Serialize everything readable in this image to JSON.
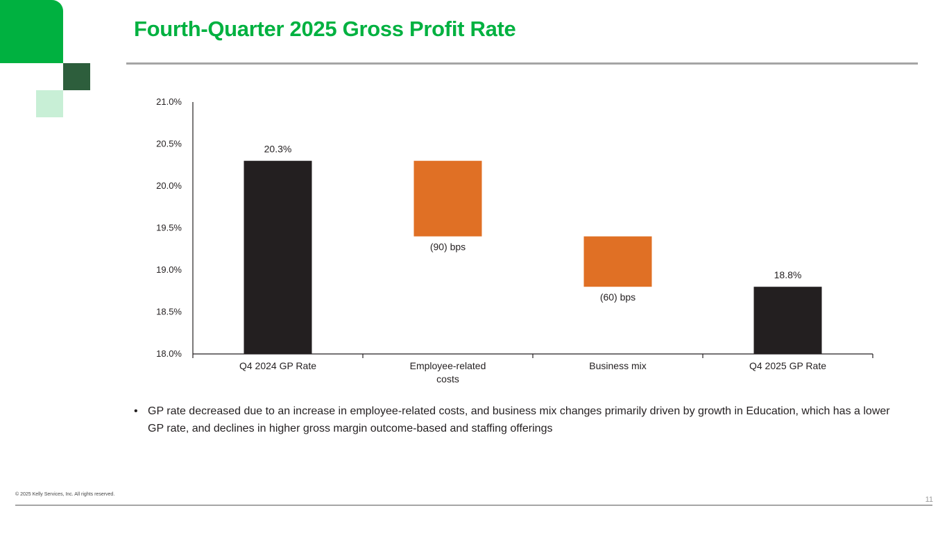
{
  "header": {
    "title": "Fourth-Quarter 2025 Gross Profit Rate"
  },
  "chart_data": {
    "type": "bar",
    "subtype": "waterfall",
    "title": "",
    "xlabel": "",
    "ylabel": "",
    "ylim": [
      18.0,
      21.0
    ],
    "y_ticks": [
      "18.0%",
      "18.5%",
      "19.0%",
      "19.5%",
      "20.0%",
      "20.5%",
      "21.0%"
    ],
    "y_tick_values": [
      18.0,
      18.5,
      19.0,
      19.5,
      20.0,
      20.5,
      21.0
    ],
    "categories": [
      "Q4 2024 GP Rate",
      "Employee-related costs",
      "Business mix",
      "Q4 2025 GP Rate"
    ],
    "category_lines": [
      [
        "Q4 2024 GP Rate"
      ],
      [
        "Employee-related",
        "costs"
      ],
      [
        "Business mix"
      ],
      [
        "Q4 2025 GP Rate"
      ]
    ],
    "bars": [
      {
        "kind": "total",
        "start": 18.0,
        "end": 20.3,
        "label": "20.3%",
        "color": "#231f20"
      },
      {
        "kind": "decrease",
        "start": 20.3,
        "end": 19.4,
        "label": "(90) bps",
        "color": "#e07025"
      },
      {
        "kind": "decrease",
        "start": 19.4,
        "end": 18.8,
        "label": "(60) bps",
        "color": "#e07025"
      },
      {
        "kind": "total",
        "start": 18.0,
        "end": 18.8,
        "label": "18.8%",
        "color": "#231f20"
      }
    ],
    "grid": false,
    "legend": "none"
  },
  "commentary": {
    "bullet_symbol": "•",
    "bullets": [
      "GP rate decreased due to an increase in employee-related costs, and business mix changes primarily driven by growth in Education, which has a lower GP rate, and declines in higher gross margin outcome-based and staffing offerings"
    ]
  },
  "footer": {
    "copyright": "© 2025 Kelly Services, Inc. All rights reserved.",
    "page_number": "11"
  },
  "colors": {
    "brand_green": "#00b140",
    "dark_green": "#2d5e3c",
    "light_green": "#c8efd6",
    "total_bar": "#231f20",
    "decrease_bar": "#e07025",
    "rule_gray": "#a5a5a5"
  }
}
